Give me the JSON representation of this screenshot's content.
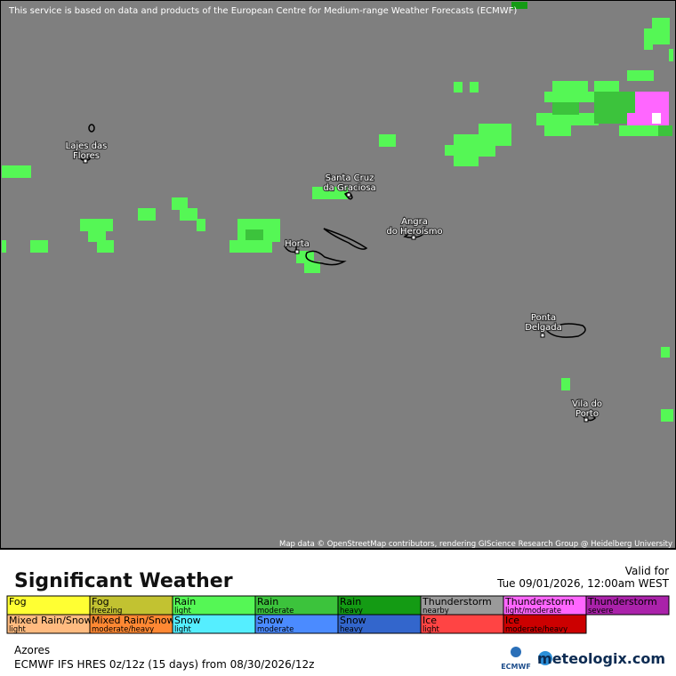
{
  "header": {
    "notice": "This service is based on data and products of the European Centre for Medium-range Weather Forecasts (ECMWF)"
  },
  "map": {
    "attribution": "Map data © OpenStreetMap contributors, rendering GIScience Research Group @ Heidelberg University",
    "places": [
      {
        "lines": [
          "Lajes das",
          "Flores"
        ]
      },
      {
        "lines": [
          "Santa Cruz",
          "da Graciosa"
        ]
      },
      {
        "lines": [
          "Angra",
          "do Heroísmo"
        ]
      },
      {
        "lines": [
          "Horta"
        ]
      },
      {
        "lines": [
          "Ponta",
          "Delgada"
        ]
      },
      {
        "lines": [
          "Vila do",
          "Porto"
        ]
      }
    ]
  },
  "footer": {
    "title": "Significant Weather",
    "valid_label": "Valid for",
    "valid_time": "Tue 09/01/2026, 12:00am WEST",
    "legend": [
      {
        "name": "Fog",
        "sub": "",
        "color": "#ffff33"
      },
      {
        "name": "Fog",
        "sub": "freezing",
        "color": "#c2c231"
      },
      {
        "name": "Rain",
        "sub": "light",
        "color": "#55f755"
      },
      {
        "name": "Rain",
        "sub": "moderate",
        "color": "#3cc33c"
      },
      {
        "name": "Rain",
        "sub": "heavy",
        "color": "#149b14"
      },
      {
        "name": "Thunderstorm",
        "sub": "nearby",
        "color": "#9a9a9a"
      },
      {
        "name": "Thunderstorm",
        "sub": "light/moderate",
        "color": "#ff66ff"
      },
      {
        "name": "Thunderstorm",
        "sub": "severe",
        "color": "#aa22aa"
      },
      {
        "name": "Mixed Rain/Snow",
        "sub": "light",
        "color": "#ffbb80"
      },
      {
        "name": "Mixed Rain/Snow",
        "sub": "moderate/heavy",
        "color": "#ff8833"
      },
      {
        "name": "Snow",
        "sub": "light",
        "color": "#55eeff"
      },
      {
        "name": "Snow",
        "sub": "moderate",
        "color": "#4b8bff"
      },
      {
        "name": "Snow",
        "sub": "heavy",
        "color": "#3366cc"
      },
      {
        "name": "Ice",
        "sub": "light",
        "color": "#ff4444"
      },
      {
        "name": "Ice",
        "sub": "moderate/heavy",
        "color": "#cc0000"
      }
    ],
    "region": "Azores",
    "model": "ECMWF IFS HRES 0z/12z (15 days) from  08/30/2026/12z",
    "logo_left": "ECMWF",
    "logo_right": "meteologix.com"
  }
}
